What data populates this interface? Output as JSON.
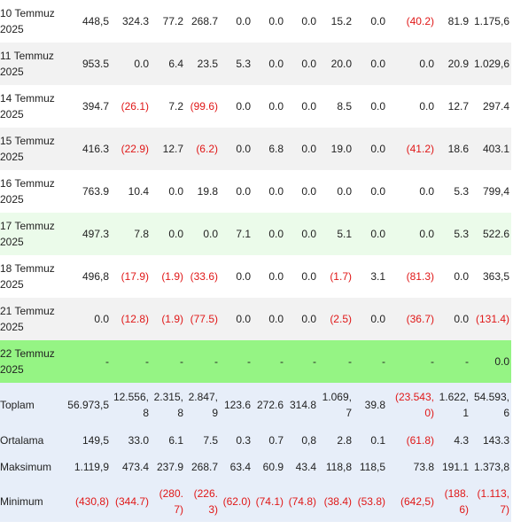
{
  "rows": [
    {
      "date": "10 Temmuz 2025",
      "values": [
        "448,5",
        "324.3",
        "77.2",
        "268.7",
        "0.0",
        "0.0",
        "0.0",
        "15.2",
        "0.0",
        "(40.2)",
        "81.9",
        "1.175,6"
      ]
    },
    {
      "date": "11 Temmuz 2025",
      "values": [
        "953.5",
        "0.0",
        "6.4",
        "23.5",
        "5.3",
        "0.0",
        "0.0",
        "20.0",
        "0.0",
        "0.0",
        "20.9",
        "1.029,6"
      ]
    },
    {
      "date": "14 Temmuz 2025",
      "values": [
        "394.7",
        "(26.1)",
        "7.2",
        "(99.6)",
        "0.0",
        "0.0",
        "0.0",
        "8.5",
        "0.0",
        "0.0",
        "12.7",
        "297.4"
      ]
    },
    {
      "date": "15 Temmuz 2025",
      "values": [
        "416.3",
        "(22.9)",
        "12.7",
        "(6.2)",
        "0.0",
        "6.8",
        "0.0",
        "19.0",
        "0.0",
        "(41.2)",
        "18.6",
        "403.1"
      ]
    },
    {
      "date": "16 Temmuz 2025",
      "values": [
        "763.9",
        "10.4",
        "0.0",
        "19.8",
        "0.0",
        "0.0",
        "0.0",
        "0.0",
        "0.0",
        "0.0",
        "5.3",
        "799,4"
      ]
    },
    {
      "date": "17 Temmuz 2025",
      "values": [
        "497.3",
        "7.8",
        "0.0",
        "0.0",
        "7.1",
        "0.0",
        "0.0",
        "5.1",
        "0.0",
        "0.0",
        "5.3",
        "522.6"
      ]
    },
    {
      "date": "18 Temmuz 2025",
      "values": [
        "496,8",
        "(17.9)",
        "(1.9)",
        "(33.6)",
        "0.0",
        "0.0",
        "0.0",
        "(1.7)",
        "3.1",
        "(81.3)",
        "0.0",
        "363,5"
      ]
    },
    {
      "date": "21 Temmuz 2025",
      "values": [
        "0.0",
        "(12.8)",
        "(1.9)",
        "(77.5)",
        "0.0",
        "0.0",
        "0.0",
        "(2.5)",
        "0.0",
        "(36.7)",
        "0.0",
        "(131.4)"
      ]
    },
    {
      "date": "22 Temmuz 2025",
      "values": [
        "-",
        "-",
        "-",
        "-",
        "-",
        "-",
        "-",
        "-",
        "-",
        "-",
        "-",
        "0.0"
      ]
    }
  ],
  "summary": [
    {
      "label": "Toplam",
      "values": [
        "56.973,5",
        "12.556,8",
        "2.315,8",
        "2.847,9",
        "123.6",
        "272.6",
        "314.8",
        "1.069,7",
        "39.8",
        "(23.543,0)",
        "1.622,1",
        "54.593,6"
      ]
    },
    {
      "label": "Ortalama",
      "values": [
        "149,5",
        "33.0",
        "6.1",
        "7.5",
        "0.3",
        "0.7",
        "0,8",
        "2.8",
        "0.1",
        "(61.8)",
        "4.3",
        "143.3"
      ]
    },
    {
      "label": "Maksimum",
      "values": [
        "1.119,9",
        "473.4",
        "237.9",
        "268.7",
        "63.4",
        "60.9",
        "43.4",
        "118,8",
        "118,5",
        "73.8",
        "191.1",
        "1.373,8"
      ]
    },
    {
      "label": "Minimum",
      "values": [
        "(430,8)",
        "(344.7)",
        "(280.7)",
        "(226.3)",
        "(62.0)",
        "(74.1)",
        "(74.8)",
        "(38.4)",
        "(53.8)",
        "(642,5)",
        "(188.6)",
        "(1.113,7)"
      ]
    }
  ],
  "colors": {
    "negative": "#e01818",
    "highlight_light": "#ebfbea",
    "highlight_strong": "#95f484",
    "summary_bg": "#e7eef9"
  }
}
